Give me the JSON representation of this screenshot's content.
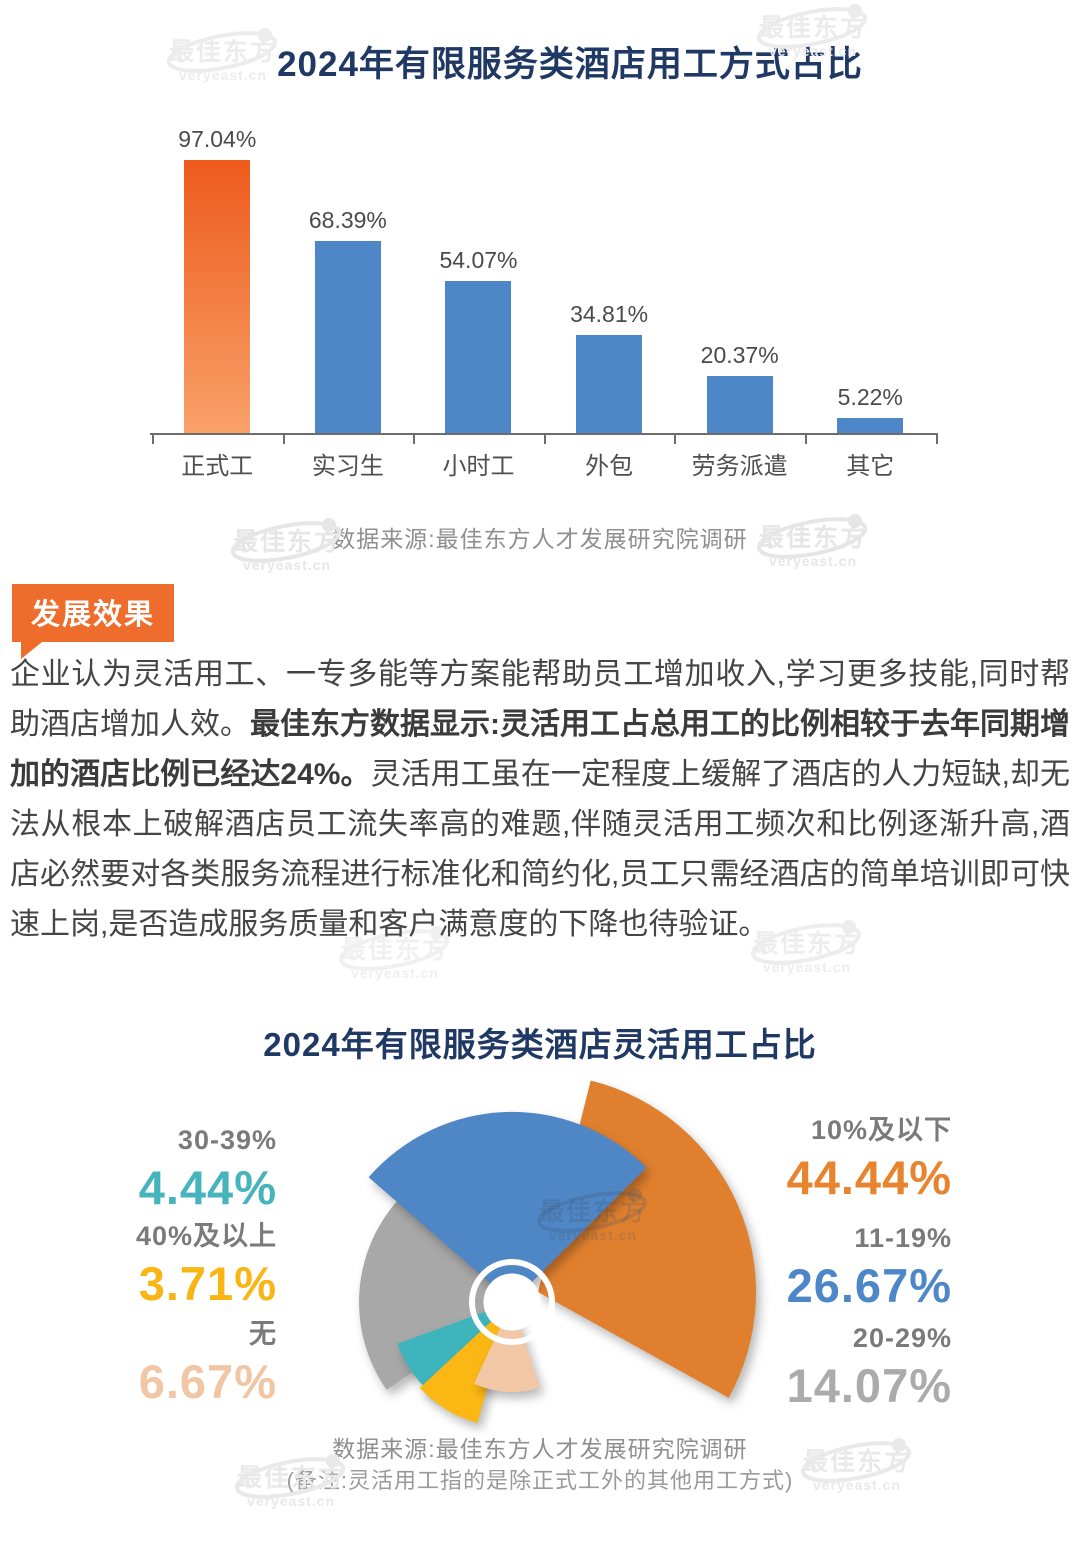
{
  "chart_data": [
    {
      "type": "bar",
      "title": "2024年有限服务类酒店用工方式占比",
      "source": "数据来源:最佳东方人才发展研究院调研",
      "categories": [
        "正式工",
        "实习生",
        "小时工",
        "外包",
        "劳务派遣",
        "其它"
      ],
      "values": [
        97.04,
        68.39,
        54.07,
        34.81,
        20.37,
        5.22
      ],
      "value_suffix": "%",
      "ylim": [
        0,
        100
      ],
      "grid": false,
      "highlight_index": 0,
      "highlight_gradient": [
        "#ee5a1c",
        "#f8a169"
      ],
      "bar_color": "#4e87c8",
      "axis_color": "#6d6d6d"
    },
    {
      "type": "pie",
      "variant": "nightingale-rose",
      "title": "2024年有限服务类酒店灵活用工占比",
      "source": "数据来源:最佳东方人才发展研究院调研",
      "note": "(备注:灵活用工指的是除正式工外的其他用工方式)",
      "categories": [
        "10%及以下",
        "11-19%",
        "20-29%",
        "无",
        "30-39%",
        "40%及以上"
      ],
      "values": [
        44.44,
        26.67,
        14.07,
        6.67,
        4.44,
        3.71
      ],
      "colors": [
        "#e0802f",
        "#4e86c6",
        "#a8a8a8",
        "#f2c7a6",
        "#3eb5bc",
        "#fbb713"
      ],
      "legend_position": "sides",
      "label_groups": {
        "left": [
          {
            "range": "30-39%",
            "value": "4.44%",
            "color": "#45b4bc"
          },
          {
            "range": "40%及以上",
            "value": "3.71%",
            "color": "#f8b513"
          },
          {
            "range": "无",
            "value": "6.67%",
            "color": "#f0c6a5"
          }
        ],
        "right": [
          {
            "range": "10%及以下",
            "value": "44.44%",
            "color": "#e8832e"
          },
          {
            "range": "11-19%",
            "value": "26.67%",
            "color": "#4e87c8"
          },
          {
            "range": "20-29%",
            "value": "14.07%",
            "color": "#ababab"
          }
        ]
      },
      "layout": {
        "center": [
          272,
          232
        ],
        "petals": [
          {
            "start": 14,
            "end": 119,
            "r": 218,
            "dx": 26,
            "dy": -10,
            "z": 5
          },
          {
            "start": 311,
            "end": 405,
            "r": 190,
            "dx": 0,
            "dy": 0,
            "z": 6
          },
          {
            "start": 235,
            "end": 317,
            "r": 153,
            "dx": 0,
            "dy": 0,
            "z": 1
          },
          {
            "start": 162,
            "end": 205,
            "r": 90,
            "dx": 0,
            "dy": 0,
            "z": 4
          },
          {
            "start": 220,
            "end": 250,
            "r": 122,
            "dx": 0,
            "dy": 0,
            "z": 2
          },
          {
            "start": 196,
            "end": 227,
            "r": 126,
            "dx": 0,
            "dy": 0,
            "z": 3
          }
        ],
        "hole": {
          "disc_r": 28.5,
          "ring_r": 40,
          "ring_width": 6
        }
      }
    }
  ],
  "section": {
    "badge": "发展效果",
    "paragraph": {
      "pre": "企业认为灵活用工、一专多能等方案能帮助员工增加收入,学习更多技能,同时帮助酒店增加人效。",
      "bold": "最佳东方数据显示:灵活用工占总用工的比例相较于去年同期增加的酒店比例已经达24%。",
      "post": "灵活用工虽在一定程度上缓解了酒店的人力短缺,却无法从根本上破解酒店员工流失率高的难题,伴随灵活用工频次和比例逐渐升高,酒店必然要对各类服务流程进行标准化和简约化,员工只需经酒店的简单培训即可快速上岗,是否造成服务质量和客户满意度的下降也待验证。"
    }
  },
  "watermark": {
    "title": "最佳东方",
    "sub": "veryeast.cn"
  }
}
